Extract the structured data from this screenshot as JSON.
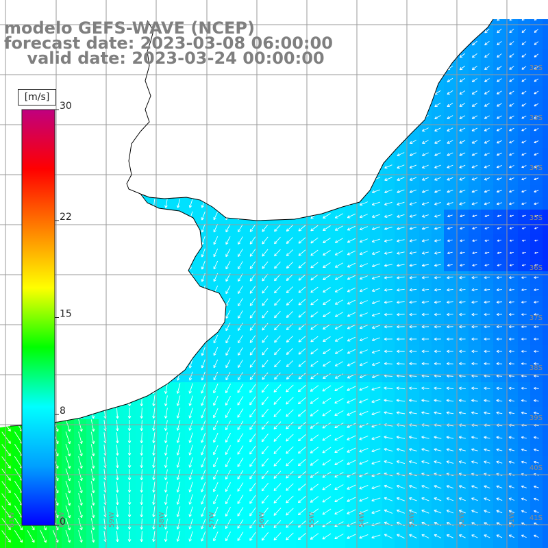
{
  "title": {
    "line1": "modelo GEFS-WAVE (NCEP)",
    "line2": "forecast date: 2023-03-08 06:00:00",
    "line3": "    valid date: 2023-03-24 00:00:00"
  },
  "colorbar": {
    "units": "[m/s]",
    "ticks": [
      "30",
      "22",
      "15",
      "8",
      "0"
    ],
    "tick_values": [
      30,
      22,
      15,
      8,
      0
    ],
    "max": 30,
    "colors": [
      "#0000ff",
      "#00a0ff",
      "#00ffff",
      "#00ff00",
      "#ffff00",
      "#ff8000",
      "#ff0000",
      "#c0007f"
    ]
  },
  "grid": {
    "lat_labels": [
      "32S",
      "33S",
      "34S",
      "35S",
      "36S",
      "37S",
      "38S",
      "39S",
      "40S",
      "41S"
    ],
    "lon_labels": [
      "61W",
      "60W",
      "59W",
      "58W",
      "57W",
      "56W",
      "55W",
      "54W",
      "53W",
      "52W",
      "51W"
    ]
  },
  "colors": {
    "land": "#ffffff",
    "coast": "#000000",
    "grid": "#9a9a9a",
    "arrow": "#ffffff",
    "title": "#7f7f7f"
  }
}
